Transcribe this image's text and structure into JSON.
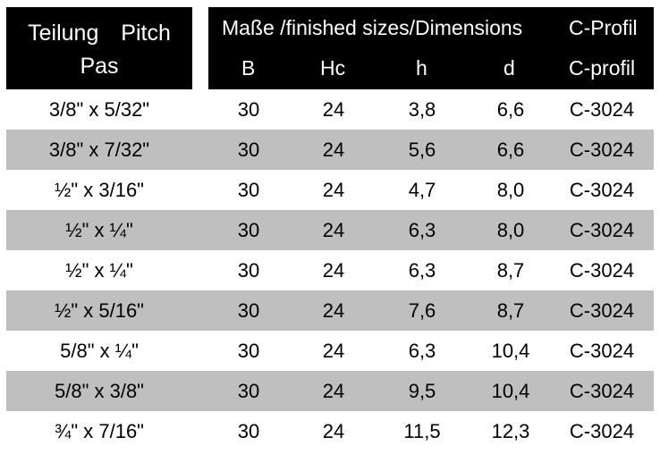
{
  "header": {
    "pitch_line1": "Teilung Pitch",
    "pitch_line2": "Pas",
    "group_title": "Maße /finished sizes/Dimensions",
    "profile_title": "C-Profil",
    "columns": [
      "B",
      "Hc",
      "h",
      "d",
      "C-profil"
    ]
  },
  "rows": [
    {
      "pitch": "3/8\" x 5/32\"",
      "B": "30",
      "Hc": "24",
      "h": "3,8",
      "d": "6,6",
      "profile": "C-3024"
    },
    {
      "pitch": "3/8\" x 7/32\"",
      "B": "30",
      "Hc": "24",
      "h": "5,6",
      "d": "6,6",
      "profile": "C-3024"
    },
    {
      "pitch": "½\" x 3/16\"",
      "B": "30",
      "Hc": "24",
      "h": "4,7",
      "d": "8,0",
      "profile": "C-3024"
    },
    {
      "pitch": "½\" x ¼\"",
      "B": "30",
      "Hc": "24",
      "h": "6,3",
      "d": "8,0",
      "profile": "C-3024"
    },
    {
      "pitch": "½\" x ¼\"",
      "B": "30",
      "Hc": "24",
      "h": "6,3",
      "d": "8,7",
      "profile": "C-3024"
    },
    {
      "pitch": "½\" x 5/16\"",
      "B": "30",
      "Hc": "24",
      "h": "7,6",
      "d": "8,7",
      "profile": "C-3024"
    },
    {
      "pitch": "5/8\" x ¼\"",
      "B": "30",
      "Hc": "24",
      "h": "6,3",
      "d": "10,4",
      "profile": "C-3024"
    },
    {
      "pitch": "5/8\" x 3/8\"",
      "B": "30",
      "Hc": "24",
      "h": "9,5",
      "d": "10,4",
      "profile": "C-3024"
    },
    {
      "pitch": "¾\" x 7/16\"",
      "B": "30",
      "Hc": "24",
      "h": "11,5",
      "d": "12,3",
      "profile": "C-3024"
    }
  ],
  "colors": {
    "header_bg": "#000000",
    "header_text": "#ffffff",
    "row_shade": "#bfbfbf"
  }
}
